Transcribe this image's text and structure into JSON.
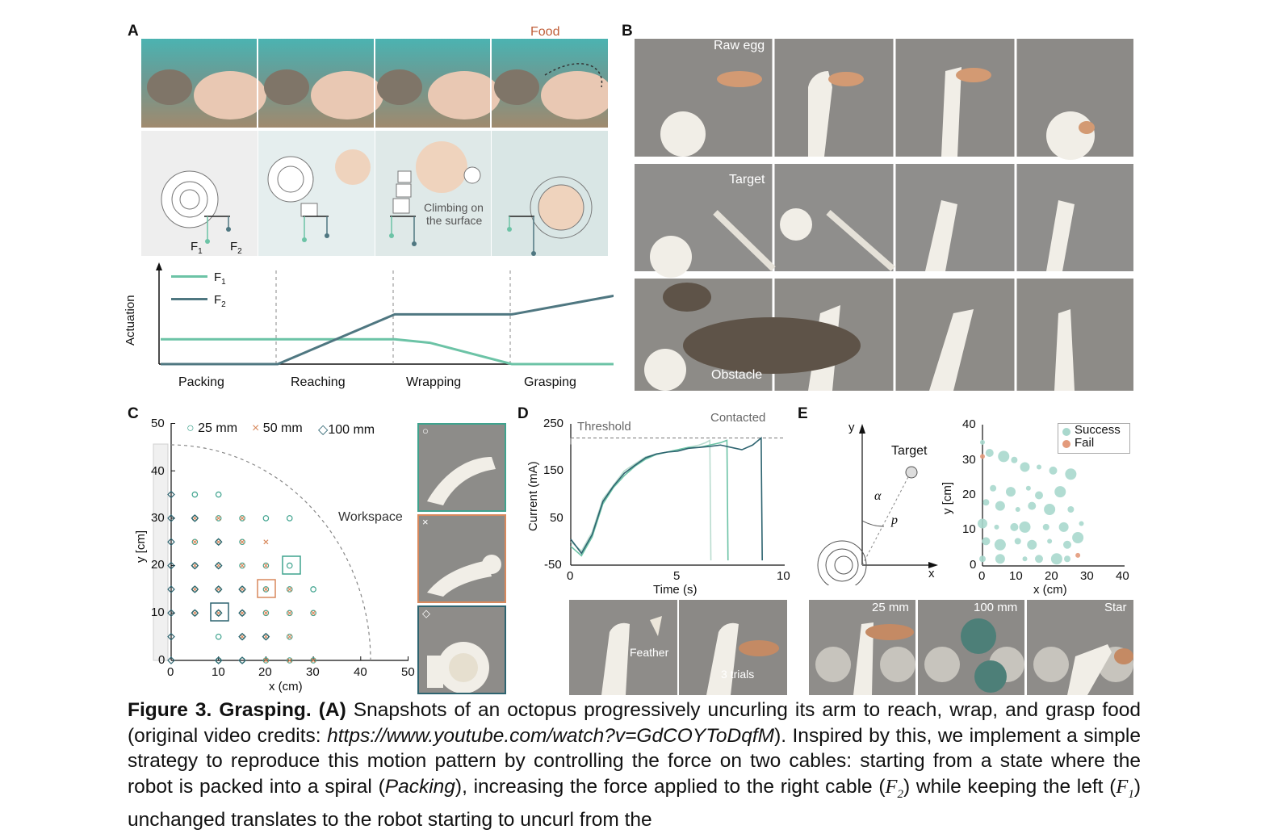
{
  "panels": {
    "a": {
      "letter": "A",
      "food_label": "Food",
      "force_labels": {
        "f1": "F",
        "f1_sub": "1",
        "f2": "F",
        "f2_sub": "2"
      },
      "climbing_line1": "Climbing on",
      "climbing_line2": "the surface",
      "plot": {
        "ylabel": "Actuation",
        "legend": [
          {
            "name": "F",
            "sub": "1",
            "color": "#6cc3a6"
          },
          {
            "name": "F",
            "sub": "2",
            "color": "#4f7781"
          }
        ],
        "phases": [
          "Packing",
          "Reaching",
          "Wrapping",
          "Grasping"
        ]
      }
    },
    "b": {
      "letter": "B",
      "row_labels": [
        "Raw egg",
        "Target",
        "Obstacle"
      ]
    },
    "c": {
      "letter": "C",
      "legend": [
        {
          "symbol": "○",
          "label": "25 mm",
          "color": "#3fa38e"
        },
        {
          "symbol": "×",
          "label": "50 mm",
          "color": "#d8895d"
        },
        {
          "symbol": "◇",
          "label": "100 mm",
          "color": "#2e6470"
        }
      ],
      "workspace_label": "Workspace",
      "xlabel": "x (cm)",
      "ylabel": "y [cm]",
      "xticks": [
        "0",
        "10",
        "20",
        "30",
        "40",
        "50"
      ],
      "yticks": [
        "0",
        "10",
        "20",
        "30",
        "40",
        "50"
      ],
      "inset_symbols": [
        "○",
        "×",
        "◇"
      ]
    },
    "d": {
      "letter": "D",
      "threshold_label": "Threshold",
      "contacted_label": "Contacted",
      "xlabel": "Time (s)",
      "ylabel": "Current (mA)",
      "xticks": [
        "0",
        "5",
        "10"
      ],
      "yticks": [
        "250",
        "150",
        "50",
        "-50"
      ],
      "photo_labels": [
        "Feather",
        "3 trials"
      ]
    },
    "e": {
      "letter": "E",
      "diagram": {
        "y": "y",
        "x": "x",
        "target": "Target",
        "alpha": "α",
        "p": "p"
      },
      "legend": [
        {
          "label": "Success",
          "color": "#a9d8cd"
        },
        {
          "label": "Fail",
          "color": "#e39a7b"
        }
      ],
      "xlabel": "x (cm)",
      "ylabel": "y [cm]",
      "xticks": [
        "0",
        "10",
        "20",
        "30",
        "40"
      ],
      "yticks": [
        "0",
        "10",
        "20",
        "30",
        "40"
      ],
      "photo_labels": [
        "25 mm",
        "100 mm",
        "Star"
      ]
    }
  },
  "chart_data": [
    {
      "type": "line",
      "panel": "A",
      "ylabel": "Actuation",
      "categories": [
        "Packing",
        "Reaching",
        "Wrapping",
        "Grasping"
      ],
      "series": [
        {
          "name": "F1",
          "color": "#6cc3a6",
          "x": [
            0,
            1,
            2,
            2.3,
            3,
            4
          ],
          "y": [
            0.35,
            0.35,
            0.35,
            0.3,
            0,
            0
          ]
        },
        {
          "name": "F2",
          "color": "#4f7781",
          "x": [
            0,
            1,
            2,
            3,
            4
          ],
          "y": [
            0,
            0,
            0.7,
            0.7,
            1.0
          ]
        }
      ],
      "grid": false
    },
    {
      "type": "scatter",
      "panel": "C",
      "xlabel": "x (cm)",
      "ylabel": "y [cm]",
      "xlim": [
        0,
        50
      ],
      "ylim": [
        0,
        50
      ],
      "series": [
        {
          "name": "25 mm",
          "marker": "circle",
          "color": "#3fa38e",
          "points": [
            [
              5,
              35
            ],
            [
              10,
              35
            ],
            [
              5,
              30
            ],
            [
              10,
              30
            ],
            [
              15,
              30
            ],
            [
              20,
              30
            ],
            [
              25,
              30
            ],
            [
              5,
              25
            ],
            [
              10,
              25
            ],
            [
              15,
              25
            ],
            [
              5,
              20
            ],
            [
              10,
              20
            ],
            [
              15,
              20
            ],
            [
              20,
              20
            ],
            [
              25,
              20
            ],
            [
              5,
              15
            ],
            [
              10,
              15
            ],
            [
              15,
              15
            ],
            [
              20,
              15
            ],
            [
              25,
              15
            ],
            [
              30,
              15
            ],
            [
              5,
              10
            ],
            [
              10,
              10
            ],
            [
              15,
              10
            ],
            [
              20,
              10
            ],
            [
              25,
              10
            ],
            [
              30,
              10
            ],
            [
              10,
              5
            ],
            [
              15,
              5
            ],
            [
              20,
              5
            ],
            [
              25,
              5
            ],
            [
              10,
              0
            ],
            [
              15,
              0
            ],
            [
              20,
              0
            ],
            [
              25,
              0
            ],
            [
              30,
              0
            ]
          ]
        },
        {
          "name": "50 mm",
          "marker": "x",
          "color": "#d8895d",
          "points": [
            [
              5,
              30
            ],
            [
              10,
              30
            ],
            [
              15,
              30
            ],
            [
              5,
              25
            ],
            [
              10,
              25
            ],
            [
              15,
              25
            ],
            [
              20,
              25
            ],
            [
              5,
              20
            ],
            [
              10,
              20
            ],
            [
              15,
              20
            ],
            [
              20,
              20
            ],
            [
              5,
              15
            ],
            [
              10,
              15
            ],
            [
              15,
              15
            ],
            [
              20,
              15
            ],
            [
              25,
              15
            ],
            [
              5,
              10
            ],
            [
              10,
              10
            ],
            [
              15,
              10
            ],
            [
              20,
              10
            ],
            [
              25,
              10
            ],
            [
              30,
              10
            ],
            [
              15,
              5
            ],
            [
              20,
              5
            ],
            [
              25,
              5
            ],
            [
              20,
              0
            ],
            [
              25,
              0
            ],
            [
              30,
              0
            ]
          ]
        },
        {
          "name": "100 mm",
          "marker": "diamond",
          "color": "#2e6470",
          "points": [
            [
              0,
              35
            ],
            [
              0,
              30
            ],
            [
              5,
              30
            ],
            [
              0,
              25
            ],
            [
              10,
              25
            ],
            [
              0,
              20
            ],
            [
              5,
              20
            ],
            [
              10,
              20
            ],
            [
              0,
              15
            ],
            [
              5,
              15
            ],
            [
              10,
              15
            ],
            [
              15,
              15
            ],
            [
              0,
              10
            ],
            [
              5,
              10
            ],
            [
              10,
              10
            ],
            [
              15,
              10
            ],
            [
              0,
              5
            ],
            [
              15,
              5
            ],
            [
              20,
              5
            ],
            [
              0,
              0
            ],
            [
              10,
              0
            ],
            [
              15,
              0
            ]
          ]
        }
      ],
      "annotation": "Workspace",
      "grid": false
    },
    {
      "type": "line",
      "panel": "D",
      "xlabel": "Time (s)",
      "ylabel": "Current (mA)",
      "xlim": [
        0,
        10
      ],
      "ylim": [
        -50,
        250
      ],
      "threshold": 220,
      "series": [
        {
          "name": "trial 1",
          "color": "#b9dccf",
          "x": [
            0,
            0.5,
            1,
            1.5,
            2,
            2.5,
            3,
            3.5,
            4,
            4.5,
            5,
            5.5,
            6,
            6.3,
            6.5,
            6.55
          ],
          "y": [
            0,
            -20,
            20,
            90,
            120,
            150,
            165,
            180,
            185,
            190,
            195,
            200,
            205,
            210,
            215,
            -40
          ]
        },
        {
          "name": "trial 2",
          "color": "#6cc3a6",
          "x": [
            0,
            0.5,
            1,
            1.5,
            2,
            2.5,
            3,
            3.5,
            4,
            4.5,
            5,
            5.5,
            6,
            6.5,
            7,
            7.3,
            7.35
          ],
          "y": [
            -10,
            -30,
            10,
            80,
            115,
            140,
            160,
            175,
            185,
            190,
            195,
            200,
            200,
            205,
            210,
            215,
            -40
          ]
        },
        {
          "name": "trial 3",
          "color": "#2e6470",
          "x": [
            0,
            0.5,
            1,
            1.5,
            2,
            2.5,
            3,
            3.5,
            4,
            4.5,
            5,
            5.5,
            6,
            6.5,
            7,
            7.5,
            8,
            8.5,
            8.9,
            8.95
          ],
          "y": [
            5,
            -25,
            15,
            85,
            118,
            145,
            162,
            178,
            186,
            190,
            192,
            198,
            200,
            202,
            205,
            200,
            195,
            205,
            220,
            -40
          ]
        }
      ],
      "annotations": [
        "Threshold",
        "Contacted"
      ],
      "grid": false
    },
    {
      "type": "scatter",
      "panel": "E",
      "xlabel": "x (cm)",
      "ylabel": "y [cm]",
      "xlim": [
        0,
        40
      ],
      "ylim": [
        0,
        40
      ],
      "series": [
        {
          "name": "Success",
          "color": "#a9d8cd",
          "points": [
            [
              0,
              35
            ],
            [
              2,
              32
            ],
            [
              6,
              31
            ],
            [
              9,
              30
            ],
            [
              12,
              28
            ],
            [
              16,
              28
            ],
            [
              20,
              27
            ],
            [
              25,
              26
            ],
            [
              3,
              22
            ],
            [
              8,
              21
            ],
            [
              13,
              22
            ],
            [
              16,
              20
            ],
            [
              22,
              21
            ],
            [
              1,
              18
            ],
            [
              5,
              17
            ],
            [
              10,
              16
            ],
            [
              14,
              17
            ],
            [
              19,
              16
            ],
            [
              25,
              16
            ],
            [
              0,
              12
            ],
            [
              4,
              11
            ],
            [
              9,
              11
            ],
            [
              12,
              11
            ],
            [
              18,
              11
            ],
            [
              23,
              11
            ],
            [
              28,
              12
            ],
            [
              1,
              7
            ],
            [
              5,
              6
            ],
            [
              10,
              7
            ],
            [
              14,
              6
            ],
            [
              19,
              7
            ],
            [
              24,
              6
            ],
            [
              27,
              8
            ],
            [
              0,
              2
            ],
            [
              5,
              2
            ],
            [
              12,
              2
            ],
            [
              16,
              2
            ],
            [
              21,
              2
            ],
            [
              24,
              2
            ]
          ]
        },
        {
          "name": "Fail",
          "color": "#e39a7b",
          "points": [
            [
              0,
              31
            ],
            [
              27,
              3
            ]
          ]
        }
      ],
      "legend": "top-right",
      "grid": false
    }
  ],
  "caption": {
    "figure_label": "Figure 3. Grasping.",
    "a_tag": "(A)",
    "s1": "Snapshots of an octopus progressively uncurling its arm to reach, wrap, and grasp food (original video credits: ",
    "url": "https://www.youtube.com/watch?v=GdCOYToDqfM",
    "s2": "). Inspired by this, we implement a simple strategy to reproduce this motion pattern by controlling the force on two cables: starting from a state where the robot is packed into a spiral (",
    "packing": "Packing",
    "s3": "), increasing the force applied to the right cable (",
    "f2": "F",
    "f2_sub": "2",
    "s4": ") while keeping the left (",
    "f1": "F",
    "f1_sub": "1",
    "s5": ") unchanged translates to the robot starting to uncurl from the"
  }
}
